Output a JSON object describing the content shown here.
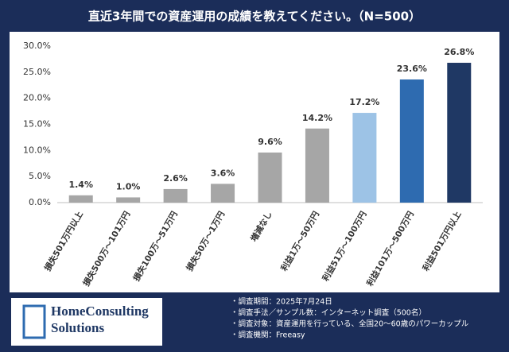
{
  "chart_data": {
    "type": "bar",
    "title": "直近3年間での資産運用の成績を教えてください。（N=500）",
    "categories": [
      "損失501万円以上",
      "損失500万～101万円",
      "損失100万～51万円",
      "損失50万～1万円",
      "増減なし",
      "利益1万～50万円",
      "利益51万～100万円",
      "利益101万～500万円",
      "利益501万円以上"
    ],
    "values": [
      1.4,
      1.0,
      2.6,
      3.6,
      9.6,
      14.2,
      17.2,
      23.6,
      26.8
    ],
    "value_labels": [
      "1.4%",
      "1.0%",
      "2.6%",
      "3.6%",
      "9.6%",
      "14.2%",
      "17.2%",
      "23.6%",
      "26.8%"
    ],
    "colors": [
      "#a6a6a6",
      "#a6a6a6",
      "#a6a6a6",
      "#a6a6a6",
      "#a6a6a6",
      "#a6a6a6",
      "#9dc3e6",
      "#2e6bb0",
      "#1f3864"
    ],
    "ylim": [
      0,
      30
    ],
    "yticks": [
      {
        "value": 0,
        "label": "0.0%"
      },
      {
        "value": 5,
        "label": "5.0%"
      },
      {
        "value": 10,
        "label": "10.0%"
      },
      {
        "value": 15,
        "label": "15.0%"
      },
      {
        "value": 20,
        "label": "20.0%"
      },
      {
        "value": 25,
        "label": "25.0%"
      },
      {
        "value": 30,
        "label": "30.0%"
      }
    ],
    "grid": false
  },
  "footer": {
    "logo": [
      "HomeConsulting",
      "Solutions"
    ],
    "notes": [
      "・調査期間：2025年7月24日",
      "・調査手法／サンプル数：インターネット調査（500名）",
      "・調査対象：資産運用を行っている、全国20～60歳のパワーカップル",
      "・調査機関：Freeasy"
    ]
  }
}
